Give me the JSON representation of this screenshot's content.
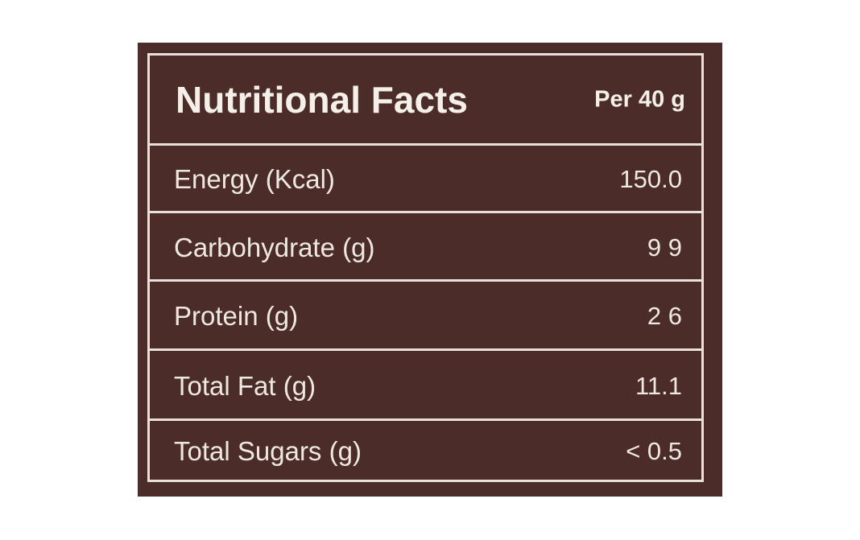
{
  "header": {
    "title": "Nutritional Facts",
    "serving": "Per 40 g"
  },
  "table": {
    "rows": [
      [
        "Energy (Kcal)",
        "150.0"
      ],
      [
        "Carbohydrate (g)",
        "9 9"
      ],
      [
        "Protein (g)",
        "2 6"
      ],
      [
        "Total Fat (g)",
        "11.1"
      ],
      [
        "Total Sugars (g)",
        "< 0.5"
      ]
    ]
  }
}
